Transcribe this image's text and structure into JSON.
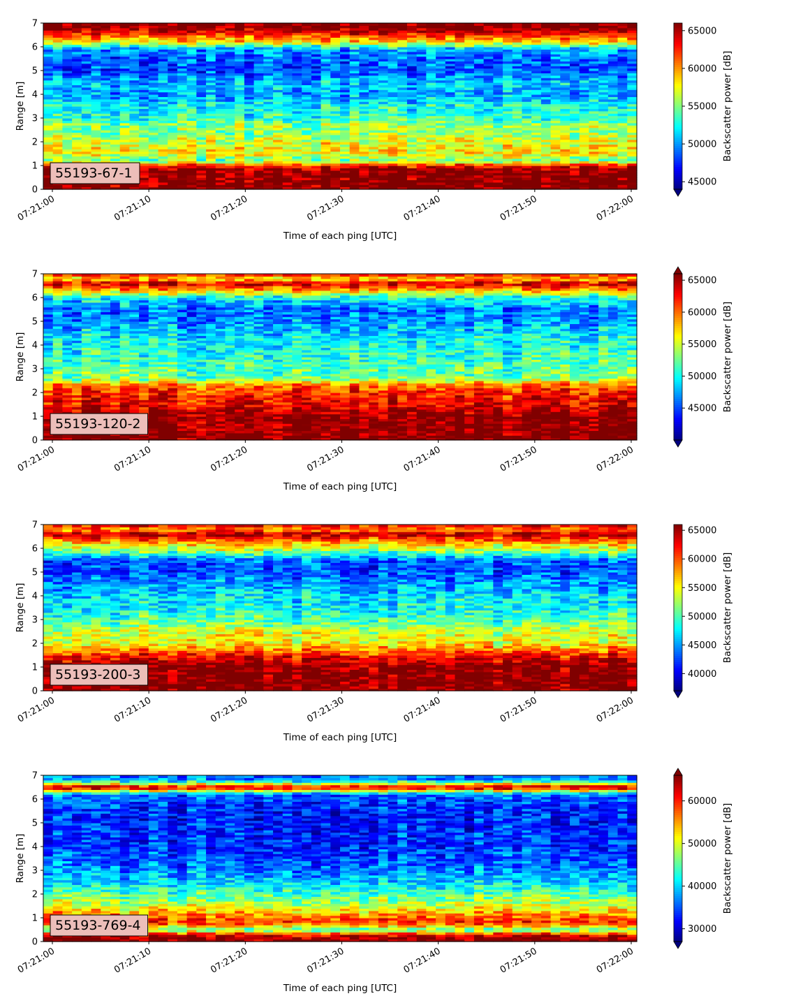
{
  "chart_data": [
    {
      "type": "heatmap",
      "label": "55193-67-1",
      "xlabel": "Time of each ping [UTC]",
      "ylabel": "Range [m]",
      "x_ticks": [
        "07:21:00",
        "07:21:10",
        "07:21:20",
        "07:21:30",
        "07:21:40",
        "07:21:50",
        "07:22:00"
      ],
      "y_ticks": [
        0,
        1,
        2,
        3,
        4,
        5,
        6,
        7
      ],
      "ylim": [
        0,
        7
      ],
      "colorbar": {
        "label": "Backscatter power [dB]",
        "min": 44000,
        "max": 66000,
        "ticks": [
          45000,
          50000,
          55000,
          60000,
          65000
        ],
        "extend": "min",
        "colormap": "jet"
      },
      "range_profile": [
        {
          "y": 0.1,
          "value": 66000
        },
        {
          "y": 0.6,
          "value": 66000
        },
        {
          "y": 0.9,
          "value": 65000
        },
        {
          "y": 1.1,
          "value": 60000
        },
        {
          "y": 1.2,
          "value": 54000
        },
        {
          "y": 1.5,
          "value": 58000
        },
        {
          "y": 2.0,
          "value": 57000
        },
        {
          "y": 2.4,
          "value": 55000
        },
        {
          "y": 2.7,
          "value": 55500
        },
        {
          "y": 3.0,
          "value": 53000
        },
        {
          "y": 3.5,
          "value": 52500
        },
        {
          "y": 4.0,
          "value": 50000
        },
        {
          "y": 4.5,
          "value": 51000
        },
        {
          "y": 5.0,
          "value": 48000
        },
        {
          "y": 5.5,
          "value": 49000
        },
        {
          "y": 5.9,
          "value": 50000
        },
        {
          "y": 6.2,
          "value": 58000
        },
        {
          "y": 6.5,
          "value": 62000
        },
        {
          "y": 6.8,
          "value": 66000
        },
        {
          "y": 7.0,
          "value": 66000
        }
      ]
    },
    {
      "type": "heatmap",
      "label": "55193-120-2",
      "xlabel": "Time of each ping [UTC]",
      "ylabel": "Range [m]",
      "x_ticks": [
        "07:21:00",
        "07:21:10",
        "07:21:20",
        "07:21:30",
        "07:21:40",
        "07:21:50",
        "07:22:00"
      ],
      "y_ticks": [
        0,
        1,
        2,
        3,
        4,
        5,
        6,
        7
      ],
      "ylim": [
        0,
        7
      ],
      "colorbar": {
        "label": "Backscatter power [dB]",
        "min": 40000,
        "max": 66000,
        "ticks": [
          45000,
          50000,
          55000,
          60000,
          65000
        ],
        "extend": "both",
        "colormap": "jet"
      },
      "range_profile": [
        {
          "y": 0.1,
          "value": 66000
        },
        {
          "y": 1.0,
          "value": 66000
        },
        {
          "y": 1.5,
          "value": 63000
        },
        {
          "y": 2.0,
          "value": 62000
        },
        {
          "y": 2.3,
          "value": 60000
        },
        {
          "y": 2.6,
          "value": 53000
        },
        {
          "y": 3.0,
          "value": 52000
        },
        {
          "y": 3.5,
          "value": 51000
        },
        {
          "y": 4.0,
          "value": 50000
        },
        {
          "y": 4.5,
          "value": 49000
        },
        {
          "y": 5.0,
          "value": 47000
        },
        {
          "y": 5.5,
          "value": 46000
        },
        {
          "y": 6.0,
          "value": 50000
        },
        {
          "y": 6.3,
          "value": 58000
        },
        {
          "y": 6.6,
          "value": 64000
        },
        {
          "y": 6.8,
          "value": 57000
        },
        {
          "y": 7.0,
          "value": 63000
        }
      ]
    },
    {
      "type": "heatmap",
      "label": "55193-200-3",
      "xlabel": "Time of each ping [UTC]",
      "ylabel": "Range [m]",
      "x_ticks": [
        "07:21:00",
        "07:21:10",
        "07:21:20",
        "07:21:30",
        "07:21:40",
        "07:21:50",
        "07:22:00"
      ],
      "y_ticks": [
        0,
        1,
        2,
        3,
        4,
        5,
        6,
        7
      ],
      "ylim": [
        0,
        7
      ],
      "colorbar": {
        "label": "Backscatter power [dB]",
        "min": 37000,
        "max": 66000,
        "ticks": [
          40000,
          45000,
          50000,
          55000,
          60000,
          65000
        ],
        "extend": "min",
        "colormap": "jet"
      },
      "range_profile": [
        {
          "y": 0.1,
          "value": 66000
        },
        {
          "y": 1.0,
          "value": 66000
        },
        {
          "y": 1.5,
          "value": 62000
        },
        {
          "y": 2.0,
          "value": 55000
        },
        {
          "y": 2.5,
          "value": 54000
        },
        {
          "y": 3.0,
          "value": 50000
        },
        {
          "y": 3.5,
          "value": 48000
        },
        {
          "y": 4.0,
          "value": 47000
        },
        {
          "y": 4.5,
          "value": 45000
        },
        {
          "y": 5.0,
          "value": 43000
        },
        {
          "y": 5.5,
          "value": 43000
        },
        {
          "y": 5.9,
          "value": 52000
        },
        {
          "y": 6.3,
          "value": 58000
        },
        {
          "y": 6.6,
          "value": 65000
        },
        {
          "y": 6.8,
          "value": 58000
        },
        {
          "y": 7.0,
          "value": 63000
        }
      ]
    },
    {
      "type": "heatmap",
      "label": "55193-769-4",
      "xlabel": "Time of each ping [UTC]",
      "ylabel": "Range [m]",
      "x_ticks": [
        "07:21:00",
        "07:21:10",
        "07:21:20",
        "07:21:30",
        "07:21:40",
        "07:21:50",
        "07:22:00"
      ],
      "y_ticks": [
        0,
        1,
        2,
        3,
        4,
        5,
        6,
        7
      ],
      "ylim": [
        0,
        7
      ],
      "colorbar": {
        "label": "Backscatter power [dB]",
        "min": 27000,
        "max": 66000,
        "ticks": [
          30000,
          40000,
          50000,
          60000
        ],
        "extend": "both",
        "colormap": "jet"
      },
      "range_profile": [
        {
          "y": 0.1,
          "value": 66000
        },
        {
          "y": 0.3,
          "value": 62000
        },
        {
          "y": 0.5,
          "value": 45000
        },
        {
          "y": 0.8,
          "value": 60000
        },
        {
          "y": 1.1,
          "value": 56000
        },
        {
          "y": 1.5,
          "value": 50000
        },
        {
          "y": 2.0,
          "value": 45000
        },
        {
          "y": 2.5,
          "value": 40000
        },
        {
          "y": 3.0,
          "value": 37000
        },
        {
          "y": 3.5,
          "value": 35000
        },
        {
          "y": 4.0,
          "value": 34000
        },
        {
          "y": 5.0,
          "value": 33000
        },
        {
          "y": 5.5,
          "value": 33000
        },
        {
          "y": 6.2,
          "value": 36000
        },
        {
          "y": 6.5,
          "value": 64000
        },
        {
          "y": 6.8,
          "value": 38000
        },
        {
          "y": 7.0,
          "value": 36000
        }
      ]
    }
  ]
}
